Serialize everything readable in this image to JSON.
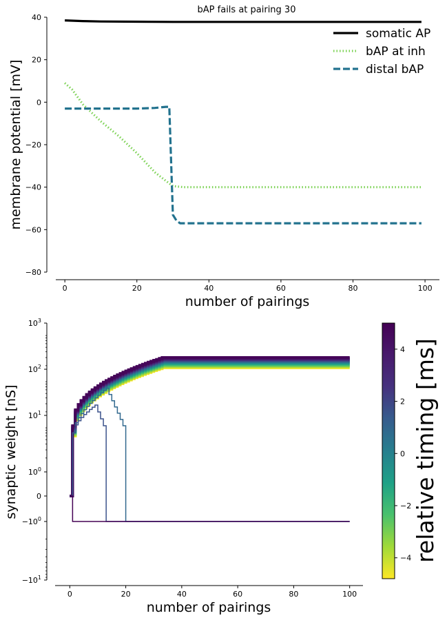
{
  "chart_data": [
    {
      "type": "line",
      "title": "bAP fails at pairing 30",
      "xlabel": "number of pairings",
      "ylabel": "membrane potential [mV]",
      "xlim": [
        -5,
        104
      ],
      "ylim": [
        -80,
        40
      ],
      "xticks": [
        0,
        20,
        40,
        60,
        80,
        100
      ],
      "yticks": [
        -80,
        -60,
        -40,
        -20,
        0,
        20,
        40
      ],
      "xtick_labels": [
        "0",
        "20",
        "40",
        "60",
        "80",
        "100"
      ],
      "ytick_labels": [
        "−80",
        "−60",
        "−40",
        "−20",
        "0",
        "20",
        "40"
      ],
      "legend_position": "top-right",
      "series": [
        {
          "name": "somatic AP",
          "color": "#000000",
          "style": "solid",
          "x": [
            0,
            5,
            10,
            20,
            30,
            40,
            60,
            80,
            99
          ],
          "y": [
            38.5,
            38.2,
            38.0,
            37.9,
            37.8,
            37.8,
            37.8,
            37.8,
            37.8
          ]
        },
        {
          "name": "bAP at inh",
          "color": "#7ad151",
          "style": "dotted",
          "x": [
            0,
            2,
            5,
            10,
            15,
            20,
            25,
            28,
            30,
            33,
            40,
            60,
            80,
            99
          ],
          "y": [
            9,
            6,
            -1,
            -9,
            -16,
            -24,
            -33,
            -37,
            -39.5,
            -40,
            -40,
            -40,
            -40,
            -40
          ]
        },
        {
          "name": "distal bAP",
          "color": "#22728e",
          "style": "dashed",
          "x": [
            0,
            10,
            20,
            25,
            28,
            29,
            30,
            31,
            32,
            40,
            60,
            80,
            99
          ],
          "y": [
            -3,
            -3,
            -3,
            -2.7,
            -2.2,
            -2.2,
            -53,
            -55.8,
            -57,
            -57,
            -57,
            -57,
            -57
          ]
        }
      ]
    },
    {
      "type": "line",
      "xlabel": "number of pairings",
      "ylabel": "synaptic weight [nS]",
      "yscale": "symlog",
      "xlim": [
        -5,
        105
      ],
      "xticks": [
        0,
        20,
        40,
        60,
        80,
        100
      ],
      "xtick_labels": [
        "0",
        "20",
        "40",
        "60",
        "80",
        "100"
      ],
      "ytick_labels": {
        "y1000": {
          "base": "10",
          "exp": "3"
        },
        "y100": {
          "base": "10",
          "exp": "2"
        },
        "y10": {
          "base": "10",
          "exp": "1"
        },
        "y1": {
          "base": "10",
          "exp": "0"
        },
        "y0": "0",
        "ym1": {
          "base": "−10",
          "exp": "0"
        },
        "ym10": {
          "base": "−10",
          "exp": "1"
        }
      },
      "saturating_series": {
        "timings_ms": [
          -4.75,
          -4.25,
          -3.75,
          -3.25,
          -2.75,
          -2.25,
          -1.75,
          -1.25,
          -0.75,
          -0.25,
          0.25,
          0.75,
          1.25,
          1.75,
          2.25,
          2.75,
          3.25,
          3.75,
          4.25,
          4.75
        ],
        "initial_weight": 0,
        "onset_pairing": 1,
        "start_range_nS": [
          6,
          10
        ],
        "plateau_range_nS": [
          180,
          300
        ],
        "plateau_pairing": 33,
        "end_pairing": 100
      },
      "transient_series": [
        {
          "timing_ms": 2.5,
          "color": "#31688e",
          "peak_nS": 65,
          "peak_pairing": 13,
          "drop_pairing": 20,
          "final_nS": -1
        },
        {
          "timing_ms": 3.5,
          "color": "#3b528b",
          "peak_nS": 28,
          "peak_pairing": 9,
          "drop_pairing": 13,
          "final_nS": -1
        },
        {
          "timing_ms": 4.75,
          "color": "#440154",
          "peak_nS": -1,
          "peak_pairing": 1,
          "drop_pairing": 1,
          "final_nS": -1
        }
      ],
      "colorbar": {
        "label": "relative timing [ms]",
        "colormap": "viridis",
        "range": [
          -4.8,
          5
        ],
        "ticks": [
          -4,
          -2,
          0,
          2,
          4
        ],
        "tick_labels": [
          "−4",
          "−2",
          "0",
          "2",
          "4"
        ]
      }
    }
  ]
}
